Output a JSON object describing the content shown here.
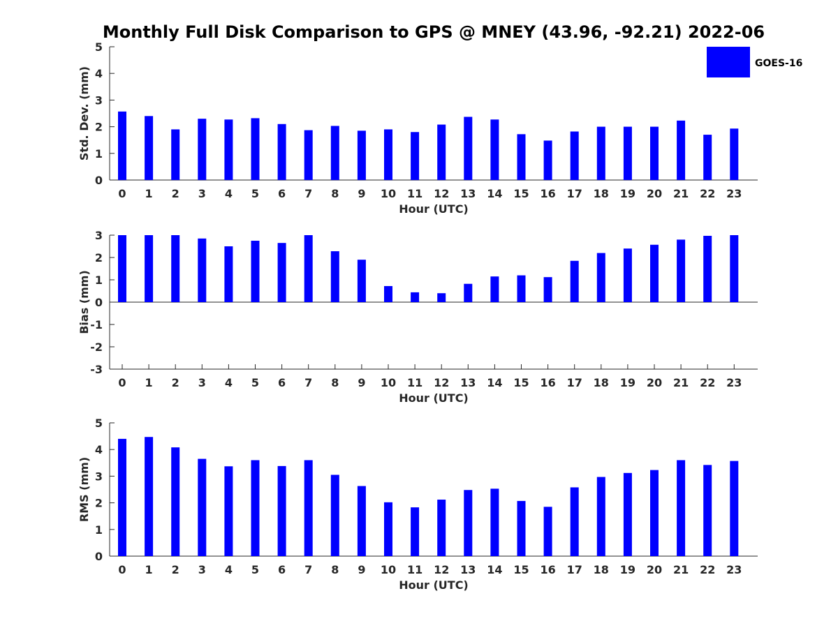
{
  "title": "Monthly Full Disk Comparison to GPS @ MNEY (43.96, -92.21) 2022-06",
  "legend": {
    "label": "GOES-16",
    "position": "top-right"
  },
  "colors": {
    "bar": "#0000ff",
    "axis": "#262626"
  },
  "chart_data": [
    {
      "type": "bar",
      "name": "std-dev",
      "title": "",
      "xlabel": "Hour (UTC)",
      "ylabel": "Std. Dev. (mm)",
      "ylim": [
        0,
        5
      ],
      "yticks": [
        "0",
        "1",
        "2",
        "3",
        "4",
        "5"
      ],
      "categories": [
        "0",
        "1",
        "2",
        "3",
        "4",
        "5",
        "6",
        "7",
        "8",
        "9",
        "10",
        "11",
        "12",
        "13",
        "14",
        "15",
        "16",
        "17",
        "18",
        "19",
        "20",
        "21",
        "22",
        "23"
      ],
      "series": [
        {
          "name": "GOES-16",
          "values": [
            2.57,
            2.4,
            1.9,
            2.3,
            2.27,
            2.32,
            2.1,
            1.87,
            2.03,
            1.85,
            1.9,
            1.8,
            2.08,
            2.37,
            2.27,
            1.72,
            1.48,
            1.82,
            2.0,
            2.0,
            2.0,
            2.23,
            1.7,
            1.93
          ]
        }
      ]
    },
    {
      "type": "bar",
      "name": "bias",
      "title": "",
      "xlabel": "Hour (UTC)",
      "ylabel": "Bias (mm)",
      "ylim": [
        -3,
        3
      ],
      "yticks": [
        "-3",
        "-2",
        "-1",
        "0",
        "1",
        "2",
        "3"
      ],
      "categories": [
        "0",
        "1",
        "2",
        "3",
        "4",
        "5",
        "6",
        "7",
        "8",
        "9",
        "10",
        "11",
        "12",
        "13",
        "14",
        "15",
        "16",
        "17",
        "18",
        "19",
        "20",
        "21",
        "22",
        "23"
      ],
      "series": [
        {
          "name": "GOES-16",
          "values": [
            3.0,
            3.0,
            3.0,
            2.85,
            2.5,
            2.75,
            2.65,
            3.0,
            2.28,
            1.9,
            0.72,
            0.44,
            0.4,
            0.82,
            1.15,
            1.2,
            1.12,
            1.85,
            2.2,
            2.4,
            2.57,
            2.8,
            2.97,
            3.0
          ]
        }
      ]
    },
    {
      "type": "bar",
      "name": "rms",
      "title": "",
      "xlabel": "Hour (UTC)",
      "ylabel": "RMS (mm)",
      "ylim": [
        0,
        5
      ],
      "yticks": [
        "0",
        "1",
        "2",
        "3",
        "4",
        "5"
      ],
      "categories": [
        "0",
        "1",
        "2",
        "3",
        "4",
        "5",
        "6",
        "7",
        "8",
        "9",
        "10",
        "11",
        "12",
        "13",
        "14",
        "15",
        "16",
        "17",
        "18",
        "19",
        "20",
        "21",
        "22",
        "23"
      ],
      "series": [
        {
          "name": "GOES-16",
          "values": [
            4.4,
            4.47,
            4.08,
            3.65,
            3.37,
            3.6,
            3.38,
            3.6,
            3.05,
            2.63,
            2.02,
            1.83,
            2.12,
            2.48,
            2.53,
            2.07,
            1.85,
            2.58,
            2.97,
            3.12,
            3.23,
            3.6,
            3.42,
            3.57
          ]
        }
      ]
    }
  ]
}
